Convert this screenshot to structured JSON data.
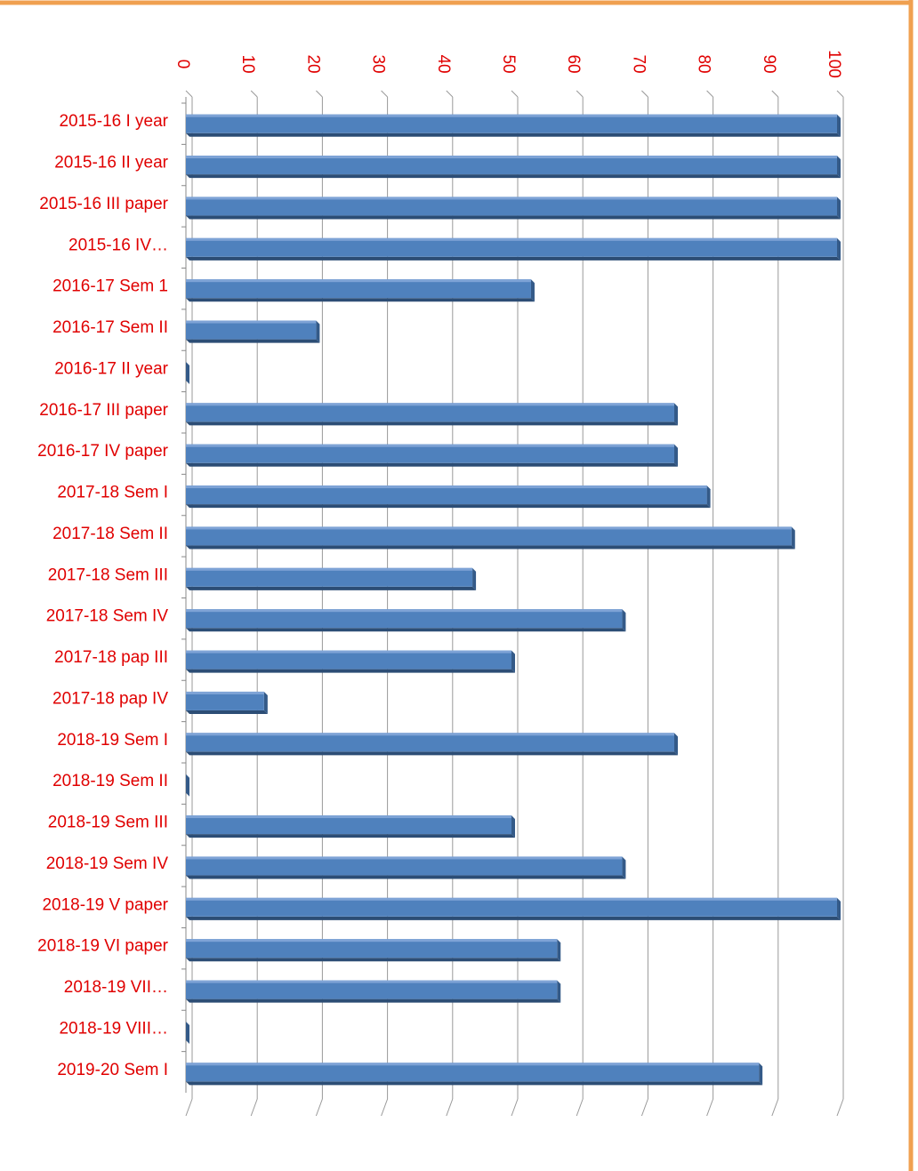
{
  "chart_data": {
    "type": "bar",
    "orientation": "horizontal",
    "categories": [
      "2015-16 I year",
      "2015-16 II year",
      "2015-16 III paper",
      "2015-16  IV…",
      "2016-17 Sem 1",
      "2016-17 Sem II",
      "2016-17 II year",
      "2016-17 III paper",
      "2016-17 IV paper",
      "2017-18 Sem I",
      "2017-18 Sem II",
      "2017-18 Sem III",
      "2017-18 Sem IV",
      "2017-18 pap III",
      "2017-18 pap IV",
      "2018-19 Sem I",
      "2018-19 Sem II",
      "2018-19 Sem III",
      "2018-19 Sem IV",
      "2018-19  V paper",
      "2018-19 VI paper",
      "2018-19 VII…",
      "2018-19 VIII…",
      "2019-20 Sem I"
    ],
    "values": [
      100,
      100,
      100,
      100,
      53,
      20,
      0,
      75,
      75,
      80,
      93,
      44,
      67,
      50,
      12,
      75,
      0,
      50,
      67,
      100,
      57,
      57,
      0,
      88
    ],
    "color": "#4f81bd",
    "xlim": [
      0,
      100
    ],
    "xticks": [
      0,
      10,
      20,
      30,
      40,
      50,
      60,
      70,
      80,
      90,
      100
    ],
    "grid": true
  }
}
